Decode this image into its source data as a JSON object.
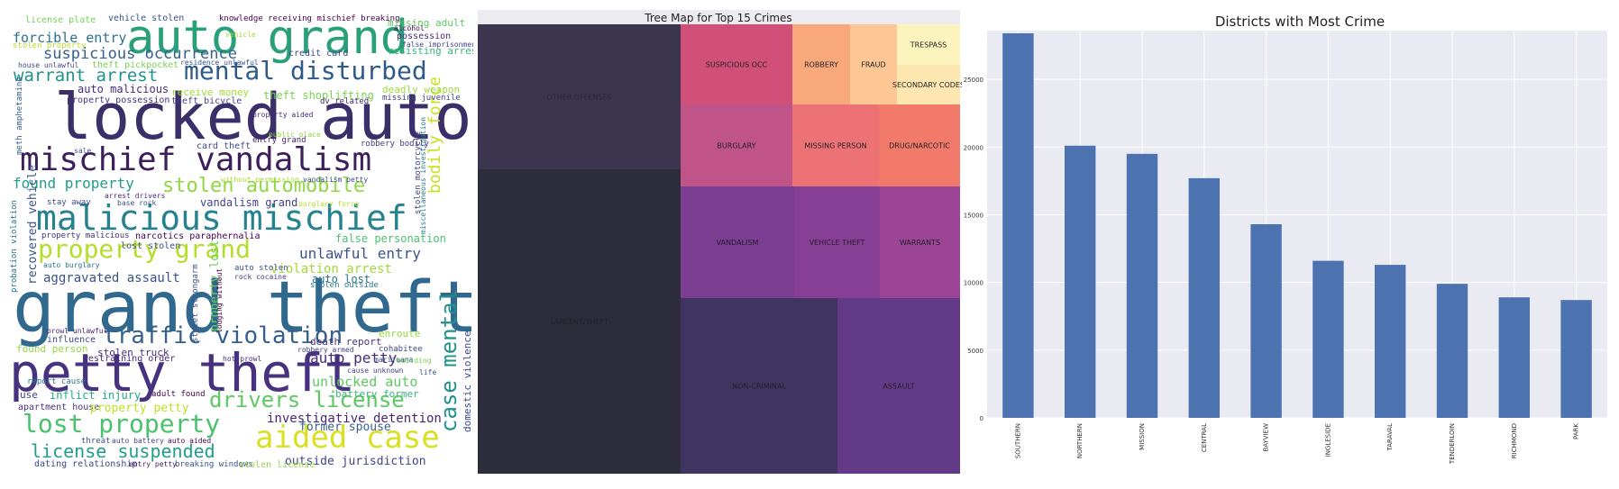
{
  "wordcloud": {
    "words": [
      {
        "text": "grand theft",
        "color": "#31688e"
      },
      {
        "text": "locked auto",
        "color": "#3b2f6a"
      },
      {
        "text": "petty theft",
        "color": "#46327e"
      },
      {
        "text": "auto grand",
        "color": "#2aa07a"
      },
      {
        "text": "malicious mischief",
        "color": "#26828e"
      },
      {
        "text": "mischief vandalism",
        "color": "#3d1f5c"
      },
      {
        "text": "aided case",
        "color": "#d9e021"
      },
      {
        "text": "mental disturbed",
        "color": "#2e5a8a"
      },
      {
        "text": "case mental",
        "color": "#21918c"
      },
      {
        "text": "property grand",
        "color": "#b5de2b"
      },
      {
        "text": "lost property",
        "color": "#4ac16d"
      },
      {
        "text": "traffic violation",
        "color": "#35608d"
      },
      {
        "text": "drivers license",
        "color": "#5ec962"
      },
      {
        "text": "stolen automobile",
        "color": "#90d743"
      },
      {
        "text": "license suspended",
        "color": "#1f9e89"
      },
      {
        "text": "suspicious occurrence",
        "color": "#355f8d"
      },
      {
        "text": "warrant arrest",
        "color": "#21918c"
      },
      {
        "text": "found property",
        "color": "#1f9e89"
      },
      {
        "text": "bodily force",
        "color": "#c8e020"
      },
      {
        "text": "unlawful entry",
        "color": "#3b528b"
      },
      {
        "text": "investigative detention",
        "color": "#482576"
      },
      {
        "text": "forcible entry",
        "color": "#2c728e"
      },
      {
        "text": "aggravated assault",
        "color": "#3b528b"
      },
      {
        "text": "auto petty",
        "color": "#472c7a"
      },
      {
        "text": "unlocked auto",
        "color": "#5ec962"
      },
      {
        "text": "violation arrest",
        "color": "#a2da37"
      },
      {
        "text": "outside jurisdiction",
        "color": "#414487"
      },
      {
        "text": "domestic violence",
        "color": "#3e4989"
      },
      {
        "text": "license plate",
        "color": "#73d056"
      },
      {
        "text": "vehicle stolen",
        "color": "#3b528b"
      },
      {
        "text": "knowledge receiving mischief breaking",
        "color": "#440154"
      },
      {
        "text": "missing adult",
        "color": "#5ec962"
      },
      {
        "text": "possession",
        "color": "#472d7b"
      },
      {
        "text": "resisting arrest",
        "color": "#35b779"
      },
      {
        "text": "credit card",
        "color": "#3e4989"
      },
      {
        "text": "stolen property",
        "color": "#b8de29"
      },
      {
        "text": "auto malicious",
        "color": "#472c7a"
      },
      {
        "text": "receive money",
        "color": "#a2da37"
      },
      {
        "text": "theft bicycle",
        "color": "#414487"
      },
      {
        "text": "property possession",
        "color": "#46337e"
      },
      {
        "text": "theft shoplifting",
        "color": "#7ad151"
      },
      {
        "text": "deadly weapon",
        "color": "#9fda3a"
      },
      {
        "text": "missing juvenile",
        "color": "#414487"
      },
      {
        "text": "dv related",
        "color": "#482878"
      },
      {
        "text": "card theft",
        "color": "#3e4a89"
      },
      {
        "text": "robbery bodily",
        "color": "#443983"
      },
      {
        "text": "entry grand",
        "color": "#482173"
      },
      {
        "text": "property aided",
        "color": "#482878"
      },
      {
        "text": "vandalism grand",
        "color": "#414487"
      },
      {
        "text": "narcotics paraphernalia",
        "color": "#440154"
      },
      {
        "text": "false personation",
        "color": "#4ac16d"
      },
      {
        "text": "property malicious",
        "color": "#46327e"
      },
      {
        "text": "lost stolen",
        "color": "#3b528b"
      },
      {
        "text": "auto lost",
        "color": "#2c728e"
      },
      {
        "text": "stolen outside",
        "color": "#2a788e"
      },
      {
        "text": "auto stolen",
        "color": "#3b528b"
      },
      {
        "text": "rock cocaine",
        "color": "#443983"
      },
      {
        "text": "influence",
        "color": "#3e4989"
      },
      {
        "text": "found person",
        "color": "#90d743"
      },
      {
        "text": "stolen truck",
        "color": "#472d7b"
      },
      {
        "text": "restraining order",
        "color": "#482878"
      },
      {
        "text": "death report",
        "color": "#46327e"
      },
      {
        "text": "enroute",
        "color": "#95d840"
      },
      {
        "text": "cohabitee",
        "color": "#3e4989"
      },
      {
        "text": "hot prowl",
        "color": "#482878"
      },
      {
        "text": "robbery armed",
        "color": "#433e85"
      },
      {
        "text": "marijuana",
        "color": "#3b528b"
      },
      {
        "text": "building",
        "color": "#75d054"
      },
      {
        "text": "cause unknown",
        "color": "#414487"
      },
      {
        "text": "life",
        "color": "#3b528b"
      },
      {
        "text": "battery former",
        "color": "#35b779"
      },
      {
        "text": "use",
        "color": "#414487"
      },
      {
        "text": "inflict injury",
        "color": "#22a884"
      },
      {
        "text": "adult found",
        "color": "#440154"
      },
      {
        "text": "apartment house",
        "color": "#46327e"
      },
      {
        "text": "property petty",
        "color": "#c0df25"
      },
      {
        "text": "former spouse",
        "color": "#355f8d"
      },
      {
        "text": "threat",
        "color": "#3b528b"
      },
      {
        "text": "auto battery",
        "color": "#414487"
      },
      {
        "text": "auto aided",
        "color": "#440154"
      },
      {
        "text": "dating relationship",
        "color": "#3e4989"
      },
      {
        "text": "entry petty",
        "color": "#481a6c"
      },
      {
        "text": "breaking windows",
        "color": "#3b528b"
      },
      {
        "text": "stolen license",
        "color": "#8fd744"
      },
      {
        "text": "report cause",
        "color": "#2a788e"
      },
      {
        "text": "stay away",
        "color": "#3e4989"
      },
      {
        "text": "arrest drivers",
        "color": "#472d7b"
      },
      {
        "text": "base rock",
        "color": "#3b528b"
      },
      {
        "text": "auto burglary",
        "color": "#2c728e"
      },
      {
        "text": "prowl unlawful",
        "color": "#482475"
      },
      {
        "text": "house unlawful",
        "color": "#3e4a89"
      },
      {
        "text": "theft pickpocket",
        "color": "#7ad151"
      },
      {
        "text": "residence unlawful",
        "color": "#3b528b"
      },
      {
        "text": "alcohol",
        "color": "#440154"
      },
      {
        "text": "vehicle",
        "color": "#9fda3a"
      },
      {
        "text": "false imprisonment",
        "color": "#414487"
      },
      {
        "text": "sale",
        "color": "#3b528b"
      },
      {
        "text": "public place",
        "color": "#8fd744"
      },
      {
        "text": "without permission",
        "color": "#a8db34"
      },
      {
        "text": "vandalism petty",
        "color": "#3e4989"
      },
      {
        "text": "burglary force",
        "color": "#b5de2b"
      },
      {
        "text": "recovered vehicle",
        "color": "#3b528b"
      },
      {
        "text": "probation violation",
        "color": "#2c728e"
      },
      {
        "text": "meth amphetamine",
        "color": "#355f8d"
      },
      {
        "text": "stolen motorcycle",
        "color": "#414487"
      },
      {
        "text": "miscellaneous investigation",
        "color": "#2a788e"
      },
      {
        "text": "property lost",
        "color": "#6ece58"
      },
      {
        "text": "street strongarm",
        "color": "#3b528b"
      },
      {
        "text": "lodging without",
        "color": "#440154"
      }
    ]
  },
  "treemap": {
    "title": "Tree Map for Top 15 Crimes",
    "labels": [
      "OTHER OFFENSES",
      "LARCENY/THEFT",
      "NON-CRIMINAL",
      "ASSAULT",
      "VANDALISM",
      "VEHICLE THEFT",
      "WARRANTS",
      "SUSPICIOUS OCC",
      "BURGLARY",
      "MISSING PERSON",
      "DRUG/NARCOTIC",
      "ROBBERY",
      "FRAUD",
      "TRESPASS",
      "SECONDARY CODES"
    ],
    "colors": [
      "#3b3550",
      "#2d2c3a",
      "#3f3560",
      "#633a88",
      "#7b3e93",
      "#873f96",
      "#9c4597",
      "#d0507a",
      "#c05388",
      "#ec7276",
      "#f17a6b",
      "#f8a87b",
      "#fcc695",
      "#fbf5bd",
      "#fde6b0"
    ]
  },
  "chart_data": {
    "type": "bar",
    "title": "Districts with Most Crime",
    "categories": [
      "SOUTHERN",
      "NORTHERN",
      "MISSION",
      "CENTRAL",
      "BAYVIEW",
      "INGLESIDE",
      "TARAVAL",
      "TENDERLOIN",
      "RICHMOND",
      "PARK"
    ],
    "values": [
      28400,
      20100,
      19500,
      17700,
      14300,
      11600,
      11300,
      9900,
      8900,
      8700
    ],
    "xlabel": "",
    "ylabel": "",
    "ylim": [
      0,
      28600
    ],
    "yticks": [
      0,
      5000,
      10000,
      15000,
      20000,
      25000
    ],
    "grid": true,
    "bar_color": "#4c72b0",
    "background": "#eaeaf2"
  }
}
